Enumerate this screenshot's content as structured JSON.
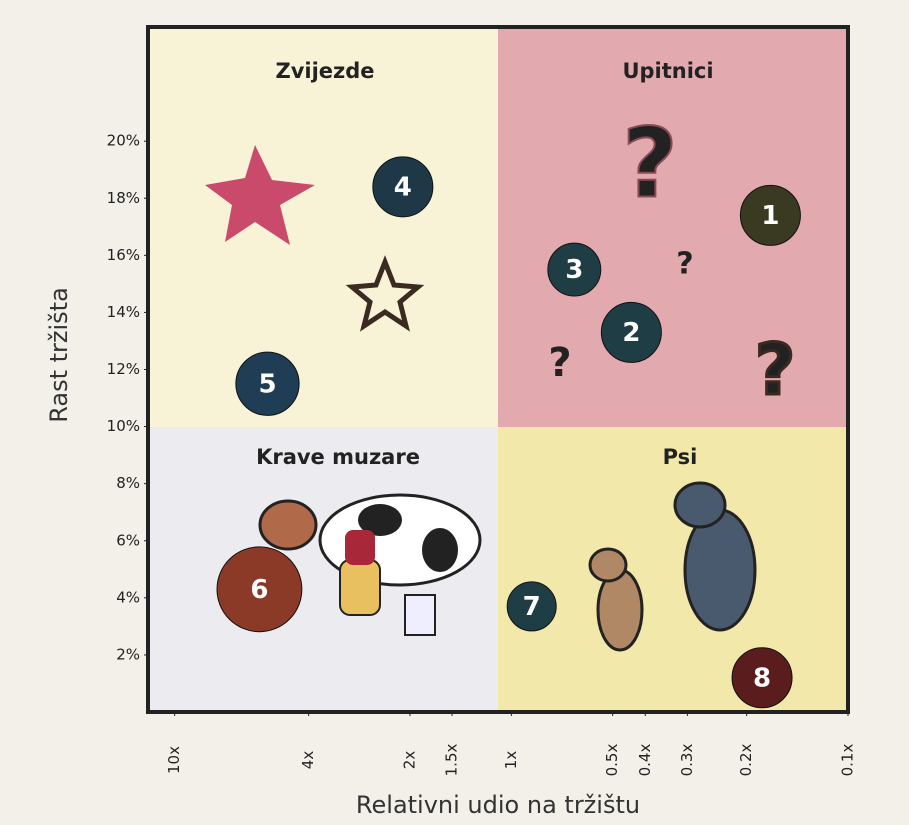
{
  "chart_data": {
    "type": "bubble",
    "x_label": "Relativni udio na tržištu",
    "y_label": "Rast tržišta",
    "quadrants": [
      "Zvijezde",
      "Upitnici",
      "Krave muzare",
      "Psi"
    ],
    "labels": [
      "1",
      "2",
      "3",
      "4",
      "5",
      "6",
      "7",
      "8"
    ],
    "x": [
      0.17,
      0.44,
      0.65,
      2.1,
      5.3,
      5.6,
      0.87,
      0.18
    ],
    "y": [
      17.4,
      13.3,
      15.5,
      18.4,
      11.5,
      4.3,
      3.7,
      1.2
    ],
    "sizes": [
      9,
      9,
      7,
      9,
      10,
      18,
      6,
      9
    ],
    "colors": [
      "#3a3a22",
      "#1f3d45",
      "#1f3d45",
      "#1f3848",
      "#1f3d55",
      "#8a3a26",
      "#1f3d45",
      "#5a1c1c"
    ],
    "x_log": true,
    "xlim": [
      12,
      0.1
    ],
    "ylim": [
      0,
      24
    ],
    "xticks": [
      {
        "value": 10,
        "label": "10x"
      },
      {
        "value": 4,
        "label": "4x"
      },
      {
        "value": 2,
        "label": "2x"
      },
      {
        "value": 1.5,
        "label": "1.5x"
      },
      {
        "value": 1,
        "label": "1x"
      },
      {
        "value": 0.5,
        "label": "0.5x"
      },
      {
        "value": 0.4,
        "label": "0.4x"
      },
      {
        "value": 0.3,
        "label": "0.3x"
      },
      {
        "value": 0.2,
        "label": "0.2x"
      },
      {
        "value": 0.1,
        "label": "0.1x"
      }
    ],
    "yticks": [
      {
        "value": 2,
        "label": "2%"
      },
      {
        "value": 4,
        "label": "4%"
      },
      {
        "value": 6,
        "label": "6%"
      },
      {
        "value": 8,
        "label": "8%"
      },
      {
        "value": 10,
        "label": "10%"
      },
      {
        "value": 12,
        "label": "12%"
      },
      {
        "value": 14,
        "label": "14%"
      },
      {
        "value": 16,
        "label": "16%"
      },
      {
        "value": 18,
        "label": "18%"
      },
      {
        "value": 20,
        "label": "20%"
      }
    ]
  }
}
